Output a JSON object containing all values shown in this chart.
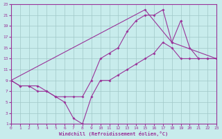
{
  "xlabel": "Windchill (Refroidissement éolien,°C)",
  "bg_color": "#c8ecec",
  "grid_color": "#a0c8c8",
  "line_color": "#993399",
  "xmin": 0,
  "xmax": 23,
  "ymin": 1,
  "ymax": 23,
  "yticks": [
    1,
    3,
    5,
    7,
    9,
    11,
    13,
    15,
    17,
    19,
    21,
    23
  ],
  "xticks": [
    0,
    1,
    2,
    3,
    4,
    5,
    6,
    7,
    8,
    9,
    10,
    11,
    12,
    13,
    14,
    15,
    16,
    17,
    18,
    19,
    20,
    21,
    22,
    23
  ],
  "line1_x": [
    0,
    1,
    2,
    3,
    4,
    5,
    6,
    7,
    8,
    9,
    10,
    11,
    12,
    13,
    14,
    15,
    16,
    17,
    18,
    19,
    20,
    21,
    22,
    23
  ],
  "line1_y": [
    9,
    8,
    8,
    7,
    7,
    6,
    6,
    6,
    6,
    9,
    13,
    14,
    15,
    18,
    20,
    21,
    21,
    22,
    16,
    20,
    15,
    13,
    13,
    13
  ],
  "line2_x": [
    0,
    1,
    2,
    3,
    4,
    5,
    6,
    7,
    8,
    9,
    10,
    11,
    12,
    13,
    14,
    15,
    16,
    17,
    18,
    19,
    20,
    21,
    22,
    23
  ],
  "line2_y": [
    9,
    8,
    8,
    8,
    7,
    6,
    5,
    2,
    1,
    6,
    9,
    9,
    10,
    11,
    12,
    13,
    14,
    16,
    15,
    13,
    13,
    13,
    13,
    13
  ],
  "line3_x": [
    0,
    15,
    18,
    23
  ],
  "line3_y": [
    9,
    22,
    16,
    13
  ]
}
